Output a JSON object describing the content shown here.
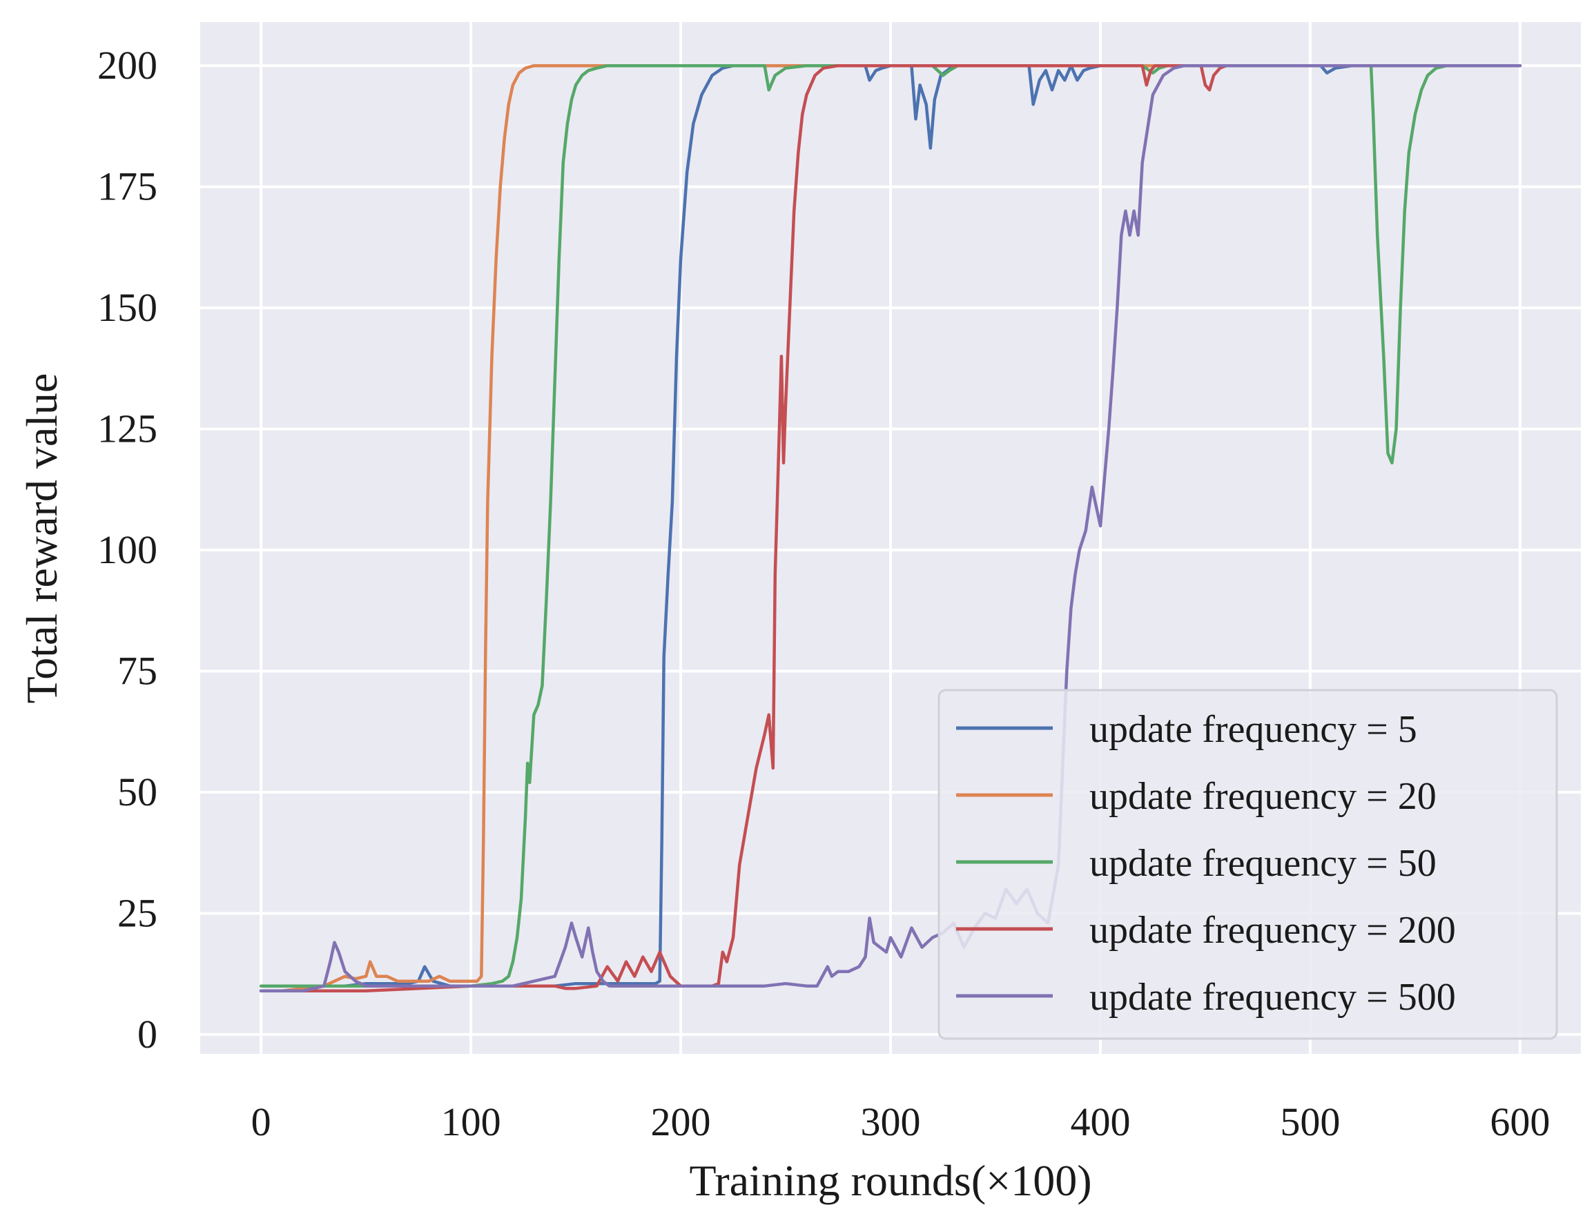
{
  "chart_data": {
    "type": "line",
    "title": "",
    "xlabel": "Training rounds(×100)",
    "ylabel": "Total reward value",
    "xlim": [
      -29,
      629
    ],
    "ylim": [
      -4,
      209
    ],
    "xticks": [
      0,
      100,
      200,
      300,
      400,
      500,
      600
    ],
    "yticks": [
      0,
      25,
      50,
      75,
      100,
      125,
      150,
      175,
      200
    ],
    "grid": true,
    "legend_position": "lower right",
    "series": [
      {
        "name": "update frequency = 5",
        "color": "#4c72b0",
        "x": [
          0,
          10,
          20,
          30,
          40,
          50,
          60,
          70,
          75,
          78,
          82,
          90,
          100,
          110,
          120,
          130,
          140,
          150,
          160,
          170,
          180,
          188,
          190,
          191,
          192,
          194,
          196,
          198,
          200,
          203,
          206,
          210,
          215,
          220,
          225,
          230,
          240,
          250,
          260,
          270,
          280,
          288,
          290,
          293,
          296,
          300,
          305,
          310,
          312,
          314,
          317,
          319,
          321,
          324,
          330,
          340,
          350,
          360,
          366,
          368,
          371,
          374,
          377,
          380,
          383,
          386,
          389,
          392,
          395,
          400,
          410,
          420,
          430,
          440,
          450,
          460,
          470,
          480,
          490,
          500,
          505,
          508,
          510,
          512,
          520,
          530,
          540,
          550,
          560,
          570,
          580,
          590,
          600
        ],
        "values": [
          9,
          9,
          9.5,
          10,
          10,
          10.5,
          10.5,
          10.5,
          11,
          14,
          11,
          10,
          10,
          10,
          10,
          10,
          10,
          10.5,
          10.5,
          10.5,
          10.5,
          10.5,
          11,
          40,
          78,
          95,
          110,
          140,
          160,
          178,
          188,
          194,
          198,
          199.5,
          200,
          200,
          200,
          200,
          200,
          200,
          200,
          200,
          197,
          199,
          199.5,
          200,
          200,
          200,
          189,
          196,
          192,
          183,
          193,
          198,
          200,
          200,
          200,
          200,
          200,
          192,
          197,
          199,
          195,
          199,
          197,
          200,
          197,
          199,
          199.5,
          200,
          200,
          200,
          200,
          200,
          200,
          200,
          200,
          200,
          200,
          200,
          200,
          198.5,
          199,
          199.5,
          200,
          200,
          200,
          200,
          200,
          200,
          200,
          200,
          200
        ]
      },
      {
        "name": "update frequency = 20",
        "color": "#dd8452",
        "x": [
          0,
          10,
          20,
          30,
          35,
          40,
          45,
          50,
          52,
          55,
          60,
          65,
          70,
          75,
          80,
          85,
          90,
          95,
          100,
          103,
          105,
          106,
          107,
          108,
          110,
          112,
          114,
          116,
          118,
          120,
          123,
          126,
          130,
          135,
          140,
          150,
          200,
          300,
          400,
          500,
          600
        ],
        "values": [
          9,
          9,
          9.5,
          10,
          11,
          12,
          11.5,
          12,
          15,
          12,
          12,
          11,
          11,
          11,
          11,
          12,
          11,
          11,
          11,
          11,
          12,
          40,
          80,
          110,
          140,
          160,
          175,
          185,
          192,
          196,
          198.5,
          199.5,
          200,
          200,
          200,
          200,
          200,
          200,
          200,
          200,
          200
        ]
      },
      {
        "name": "update frequency = 50",
        "color": "#55a868",
        "x": [
          0,
          50,
          100,
          110,
          115,
          118,
          120,
          122,
          124,
          126,
          127,
          128,
          130,
          132,
          134,
          136,
          138,
          140,
          142,
          144,
          146,
          148,
          150,
          153,
          156,
          160,
          165,
          170,
          180,
          200,
          220,
          235,
          240,
          242,
          245,
          250,
          260,
          280,
          300,
          320,
          325,
          328,
          332,
          340,
          360,
          400,
          410,
          420,
          425,
          428,
          432,
          440,
          460,
          480,
          500,
          520,
          527,
          529,
          530,
          532,
          535,
          537,
          539,
          541,
          543,
          545,
          547,
          550,
          553,
          556,
          560,
          565,
          570,
          575,
          580,
          590,
          600
        ],
        "values": [
          10,
          10,
          10,
          10.5,
          11,
          12,
          15,
          20,
          28,
          45,
          56,
          52,
          66,
          68,
          72,
          90,
          110,
          135,
          160,
          180,
          188,
          193,
          196,
          198,
          199,
          199.5,
          200,
          200,
          200,
          200,
          200,
          200,
          200,
          195,
          198,
          199.5,
          200,
          200,
          200,
          200,
          198,
          199,
          200,
          200,
          200,
          200,
          200,
          200,
          198.5,
          199.5,
          200,
          200,
          200,
          200,
          200,
          200,
          200,
          200,
          190,
          165,
          140,
          120,
          118,
          125,
          150,
          170,
          182,
          190,
          195,
          198,
          199.5,
          200,
          200,
          200,
          200,
          200,
          200
        ]
      },
      {
        "name": "update frequency = 200",
        "color": "#c44e52",
        "x": [
          0,
          50,
          100,
          130,
          140,
          145,
          150,
          160,
          165,
          170,
          174,
          178,
          182,
          186,
          190,
          195,
          200,
          210,
          215,
          218,
          220,
          222,
          225,
          228,
          232,
          236,
          240,
          242,
          244,
          245,
          246,
          248,
          249,
          250,
          252,
          254,
          256,
          258,
          260,
          264,
          268,
          275,
          285,
          300,
          320,
          350,
          400,
          420,
          422,
          424,
          426,
          430,
          440,
          448,
          450,
          452,
          454,
          457,
          460,
          470,
          500,
          550,
          600
        ],
        "values": [
          9,
          9,
          10,
          10,
          10,
          9.5,
          9.5,
          10,
          14,
          11,
          15,
          12,
          16,
          13,
          17,
          12,
          10,
          10,
          10,
          10.5,
          17,
          15,
          20,
          35,
          45,
          55,
          62,
          66,
          55,
          95,
          110,
          140,
          118,
          130,
          150,
          170,
          182,
          190,
          194,
          198,
          199.5,
          200,
          200,
          200,
          200,
          200,
          200,
          200,
          196,
          199,
          200,
          200,
          200,
          200,
          196,
          195,
          198,
          199.5,
          200,
          200,
          200,
          200,
          200
        ]
      },
      {
        "name": "update frequency = 500",
        "color": "#8172b3",
        "x": [
          0,
          10,
          20,
          30,
          33,
          35,
          37,
          40,
          45,
          50,
          60,
          80,
          100,
          120,
          130,
          140,
          145,
          148,
          150,
          153,
          156,
          158,
          160,
          163,
          166,
          170,
          180,
          190,
          200,
          210,
          220,
          230,
          240,
          250,
          260,
          265,
          270,
          272,
          275,
          280,
          285,
          288,
          290,
          292,
          295,
          298,
          300,
          305,
          310,
          315,
          320,
          325,
          330,
          335,
          340,
          345,
          350,
          355,
          360,
          365,
          370,
          375,
          380,
          382,
          384,
          386,
          388,
          390,
          393,
          396,
          400,
          402,
          404,
          406,
          408,
          410,
          412,
          414,
          416,
          418,
          420,
          425,
          430,
          435,
          440,
          450,
          460,
          480,
          500,
          520,
          540,
          560,
          580,
          600
        ],
        "values": [
          9,
          9,
          9,
          10,
          15,
          19,
          17,
          13,
          11,
          10,
          10,
          10,
          10,
          10,
          11,
          12,
          18,
          23,
          20,
          16,
          22,
          17,
          13,
          11,
          10,
          10,
          10,
          10,
          10,
          10,
          10,
          10,
          10,
          10.5,
          10,
          10,
          14,
          12,
          13,
          13,
          14,
          16,
          24,
          19,
          18,
          17,
          20,
          16,
          22,
          18,
          20,
          21,
          23,
          18,
          22,
          25,
          24,
          30,
          27,
          30,
          25,
          23,
          35,
          55,
          75,
          88,
          95,
          100,
          104,
          113,
          105,
          115,
          125,
          137,
          150,
          165,
          170,
          165,
          170,
          165,
          180,
          194,
          198,
          199.5,
          200,
          200,
          200,
          200,
          200,
          200,
          200,
          200,
          200,
          200
        ]
      }
    ]
  }
}
